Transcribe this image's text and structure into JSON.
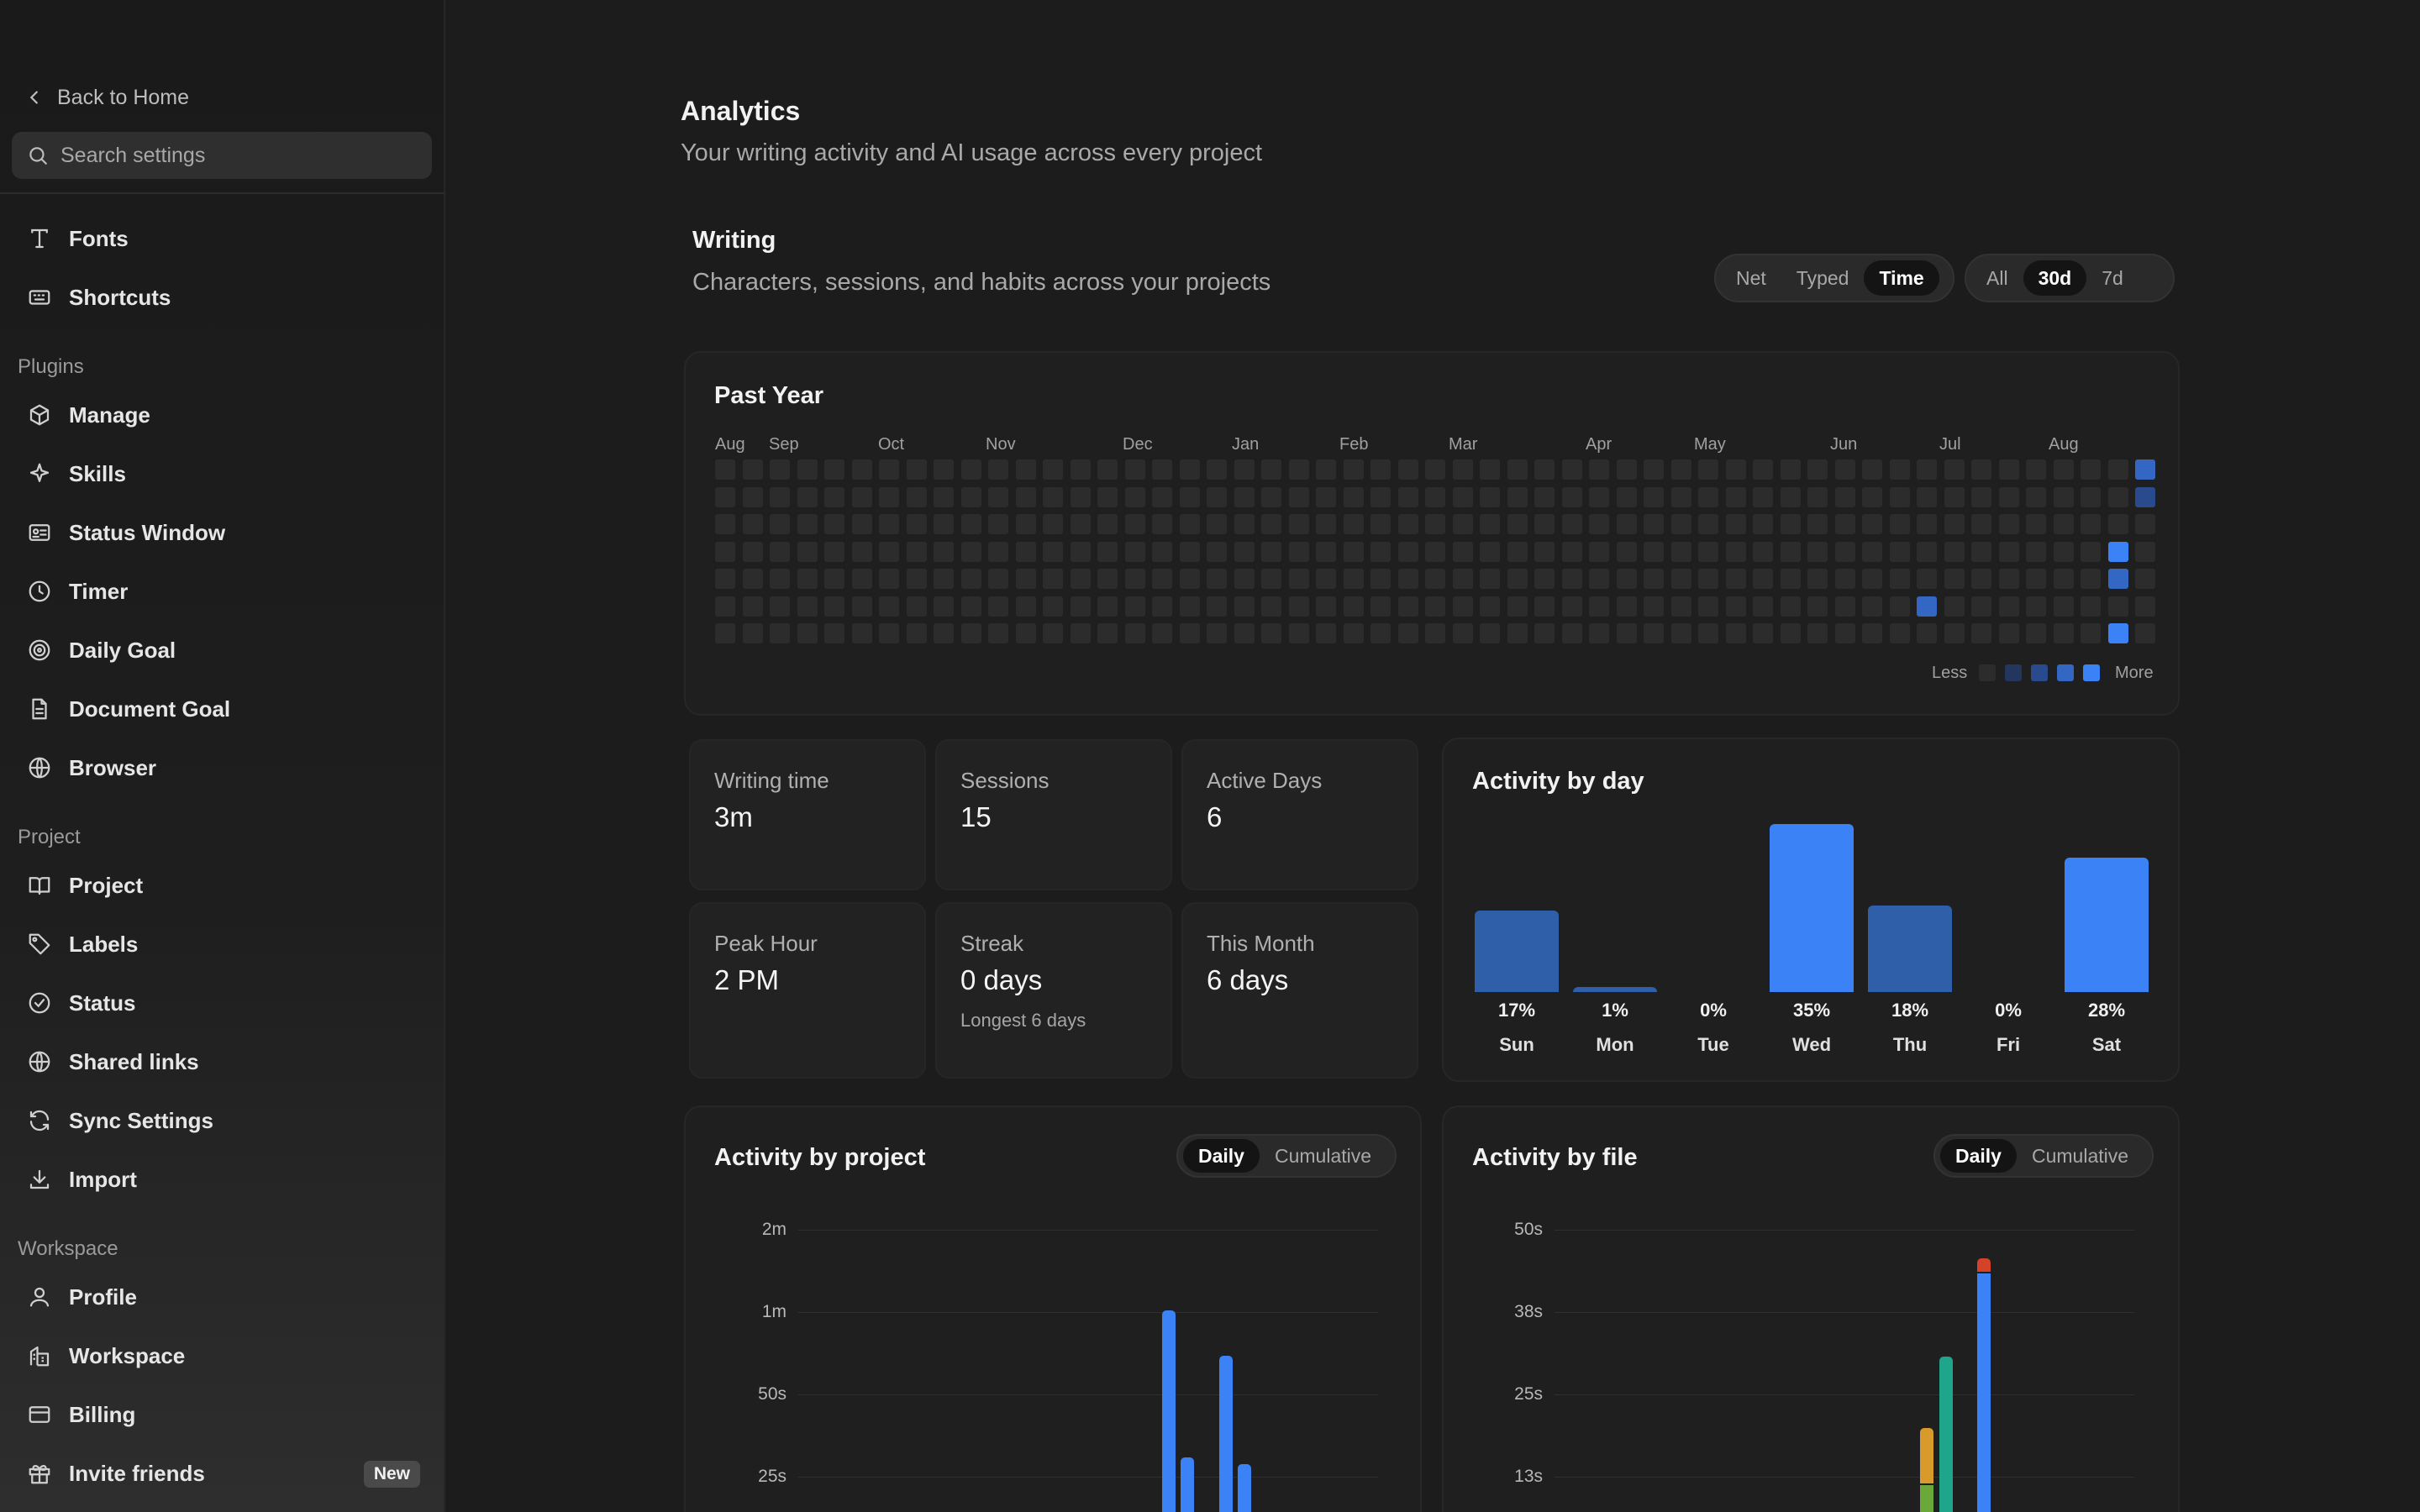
{
  "sidebar": {
    "back_label": "Back to Home",
    "search_placeholder": "Search settings",
    "top_items": [
      {
        "label": "Fonts",
        "icon": "type-icon"
      },
      {
        "label": "Shortcuts",
        "icon": "keyboard-icon"
      }
    ],
    "sections": [
      {
        "label": "Plugins",
        "items": [
          "Manage",
          "Skills",
          "Status Window",
          "Timer",
          "Daily Goal",
          "Document Goal",
          "Browser"
        ]
      },
      {
        "label": "Project",
        "items": [
          "Project",
          "Labels",
          "Status",
          "Shared links",
          "Sync Settings",
          "Import"
        ]
      },
      {
        "label": "Workspace",
        "items": [
          "Profile",
          "Workspace",
          "Billing",
          "Invite friends"
        ]
      }
    ],
    "plugins": {
      "label": "Plugins",
      "manage": "Manage",
      "skills": "Skills",
      "status_window": "Status Window",
      "timer": "Timer",
      "daily_goal": "Daily Goal",
      "document_goal": "Document Goal",
      "browser": "Browser"
    },
    "project": {
      "label": "Project",
      "project": "Project",
      "labels": "Labels",
      "status": "Status",
      "shared_links": "Shared links",
      "sync_settings": "Sync Settings",
      "import": "Import"
    },
    "workspace": {
      "label": "Workspace",
      "profile": "Profile",
      "workspace": "Workspace",
      "billing": "Billing",
      "invite_friends": "Invite friends",
      "invite_badge": "New"
    }
  },
  "header": {
    "title": "Analytics",
    "subtitle": "Your writing activity and AI usage across every project"
  },
  "writing": {
    "title": "Writing",
    "subtitle": "Characters, sessions, and habits across your projects",
    "metric_toggle": {
      "options": [
        "Net",
        "Typed",
        "Time"
      ],
      "selected": "Time"
    },
    "range_toggle": {
      "options": [
        "All",
        "30d",
        "7d"
      ],
      "selected": "30d"
    }
  },
  "heatmap": {
    "title": "Past Year",
    "months": [
      "Aug",
      "Sep",
      "Oct",
      "Nov",
      "Dec",
      "Jan",
      "Feb",
      "Mar",
      "Apr",
      "May",
      "Jun",
      "Jul",
      "Aug"
    ],
    "legend_less": "Less",
    "legend_more": "More",
    "colors": [
      "#2c2c2c",
      "#22365e",
      "#2a4a8e",
      "#3466c4",
      "#3b82f6"
    ],
    "active_cells": [
      {
        "week": 52,
        "day": 0,
        "level": 3
      },
      {
        "week": 52,
        "day": 1,
        "level": 2
      },
      {
        "week": 51,
        "day": 3,
        "level": 4
      },
      {
        "week": 51,
        "day": 4,
        "level": 3
      },
      {
        "week": 44,
        "day": 5,
        "level": 3
      },
      {
        "week": 51,
        "day": 6,
        "level": 4
      }
    ]
  },
  "stats": {
    "writing_time": {
      "label": "Writing time",
      "value": "3m"
    },
    "sessions": {
      "label": "Sessions",
      "value": "15"
    },
    "active_days": {
      "label": "Active Days",
      "value": "6"
    },
    "peak_hour": {
      "label": "Peak Hour",
      "value": "2 PM"
    },
    "streak": {
      "label": "Streak",
      "value": "0 days",
      "sub": "Longest 6 days"
    },
    "this_month": {
      "label": "This Month",
      "value": "6 days"
    }
  },
  "activity_by_day": {
    "title": "Activity by day",
    "days": [
      "Sun",
      "Mon",
      "Tue",
      "Wed",
      "Thu",
      "Fri",
      "Sat"
    ],
    "percents": [
      "17%",
      "1%",
      "0%",
      "35%",
      "18%",
      "0%",
      "28%"
    ],
    "values": [
      17,
      1,
      0,
      35,
      18,
      0,
      28
    ],
    "highlight": [
      false,
      false,
      false,
      true,
      false,
      false,
      true
    ]
  },
  "activity_by_project": {
    "title": "Activity by project",
    "toggle": {
      "options": [
        "Daily",
        "Cumulative"
      ],
      "selected": "Daily"
    },
    "y_ticks": [
      "2m",
      "1m",
      "50s",
      "25s"
    ]
  },
  "activity_by_file": {
    "title": "Activity by file",
    "toggle": {
      "options": [
        "Daily",
        "Cumulative"
      ],
      "selected": "Daily"
    },
    "y_ticks": [
      "50s",
      "38s",
      "25s",
      "13s"
    ]
  },
  "chart_data": [
    {
      "type": "heatmap",
      "title": "Past Year",
      "x_labels": [
        "Aug",
        "Sep",
        "Oct",
        "Nov",
        "Dec",
        "Jan",
        "Feb",
        "Mar",
        "Apr",
        "May",
        "Jun",
        "Jul",
        "Aug"
      ],
      "legend": [
        "Less",
        "More"
      ]
    },
    {
      "type": "bar",
      "title": "Activity by day",
      "categories": [
        "Sun",
        "Mon",
        "Tue",
        "Wed",
        "Thu",
        "Fri",
        "Sat"
      ],
      "values": [
        17,
        1,
        0,
        35,
        18,
        0,
        28
      ]
    },
    {
      "type": "bar",
      "title": "Activity by project",
      "y_ticks": [
        "2m",
        "1m",
        "50s",
        "25s"
      ],
      "series": [
        {
          "values_seconds": [
            63,
            17,
            49,
            15
          ],
          "color": "#3b82f6"
        }
      ]
    },
    {
      "type": "bar",
      "title": "Activity by file",
      "y_ticks": [
        "50s",
        "38s",
        "25s",
        "13s"
      ],
      "series": [
        {
          "values_seconds": [
            12,
            6
          ],
          "color": "#d89a2b"
        },
        {
          "values_seconds": [
            30
          ],
          "color": "#1fa58a"
        },
        {
          "values_seconds": [
            54
          ],
          "color": "#3b82f6"
        },
        {
          "values_seconds": [
            1
          ],
          "color": "#d4422a"
        }
      ]
    }
  ]
}
